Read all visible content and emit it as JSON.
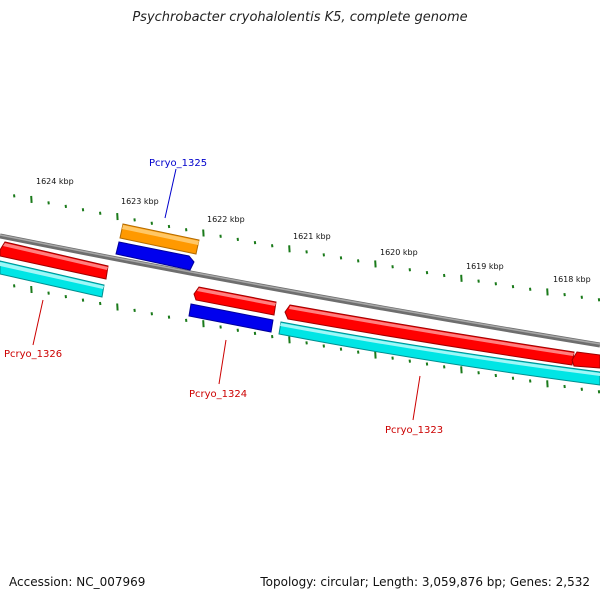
{
  "title": "Psychrobacter cryohalolentis K5, complete genome",
  "footer": {
    "accession": "Accession: NC_007969",
    "summary": "Topology: circular; Length: 3,059,876 bp; Genes: 2,532"
  },
  "colors": {
    "backbone": "#8a8a8a",
    "tick": "#1a7a1a",
    "cds_forward": "#ff0000",
    "cds_reverse_shadow": "#00e5e5",
    "gene_blue": "#0000ee",
    "gene_orange": "#ff9900",
    "label_red": "#cc0000",
    "label_blue": "#0000cc"
  },
  "scale_labels": [
    "1624 kbp",
    "1623 kbp",
    "1622 kbp",
    "1621 kbp",
    "1620 kbp",
    "1619 kbp",
    "1618 kbp"
  ],
  "genes": [
    {
      "label": "Pcryo_1325",
      "color": "blue"
    },
    {
      "label": "Pcryo_1326",
      "color": "red"
    },
    {
      "label": "Pcryo_1324",
      "color": "red"
    },
    {
      "label": "Pcryo_1323",
      "color": "red"
    }
  ]
}
